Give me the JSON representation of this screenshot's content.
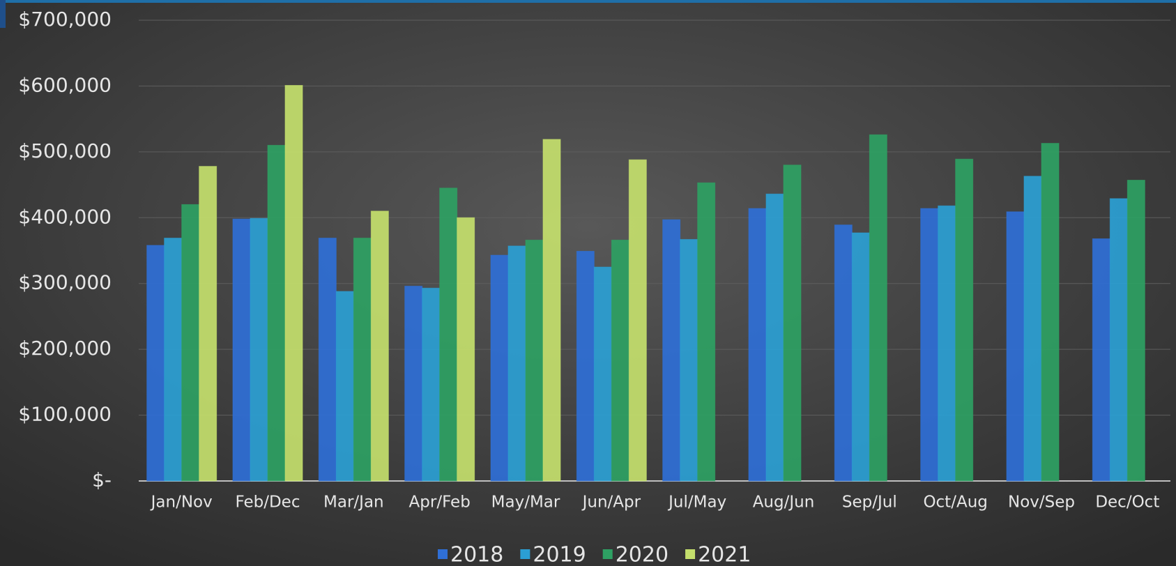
{
  "chart_data": {
    "type": "bar",
    "categories": [
      "Jan/Nov",
      "Feb/Dec",
      "Mar/Jan",
      "Apr/Feb",
      "May/Mar",
      "Jun/Apr",
      "Jul/May",
      "Aug/Jun",
      "Sep/Jul",
      "Oct/Aug",
      "Nov/Sep",
      "Dec/Oct"
    ],
    "series": [
      {
        "name": "2018",
        "color": "#2f6fd6",
        "values": [
          358000,
          398000,
          369000,
          296000,
          343000,
          349000,
          397000,
          414000,
          389000,
          414000,
          409000,
          368000
        ]
      },
      {
        "name": "2019",
        "color": "#2b9fd4",
        "values": [
          369000,
          399000,
          288000,
          293000,
          357000,
          325000,
          367000,
          436000,
          377000,
          418000,
          463000,
          429000
        ]
      },
      {
        "name": "2020",
        "color": "#2ea163",
        "values": [
          420000,
          510000,
          369000,
          445000,
          366000,
          366000,
          453000,
          480000,
          526000,
          489000,
          513000,
          457000
        ]
      },
      {
        "name": "2021",
        "color": "#c4df6c",
        "values": [
          478000,
          601000,
          410000,
          400000,
          519000,
          488000,
          null,
          null,
          null,
          null,
          null,
          null
        ]
      }
    ],
    "ylim": [
      0,
      700000
    ],
    "yticks": [
      {
        "value": 0,
        "label": "$-"
      },
      {
        "value": 100000,
        "label": "$100,000"
      },
      {
        "value": 200000,
        "label": "$200,000"
      },
      {
        "value": 300000,
        "label": "$300,000"
      },
      {
        "value": 400000,
        "label": "$400,000"
      },
      {
        "value": 500000,
        "label": "$500,000"
      },
      {
        "value": 600000,
        "label": "$600,000"
      },
      {
        "value": 700000,
        "label": "$700,000"
      }
    ],
    "grid": true,
    "legend": "bottom"
  }
}
